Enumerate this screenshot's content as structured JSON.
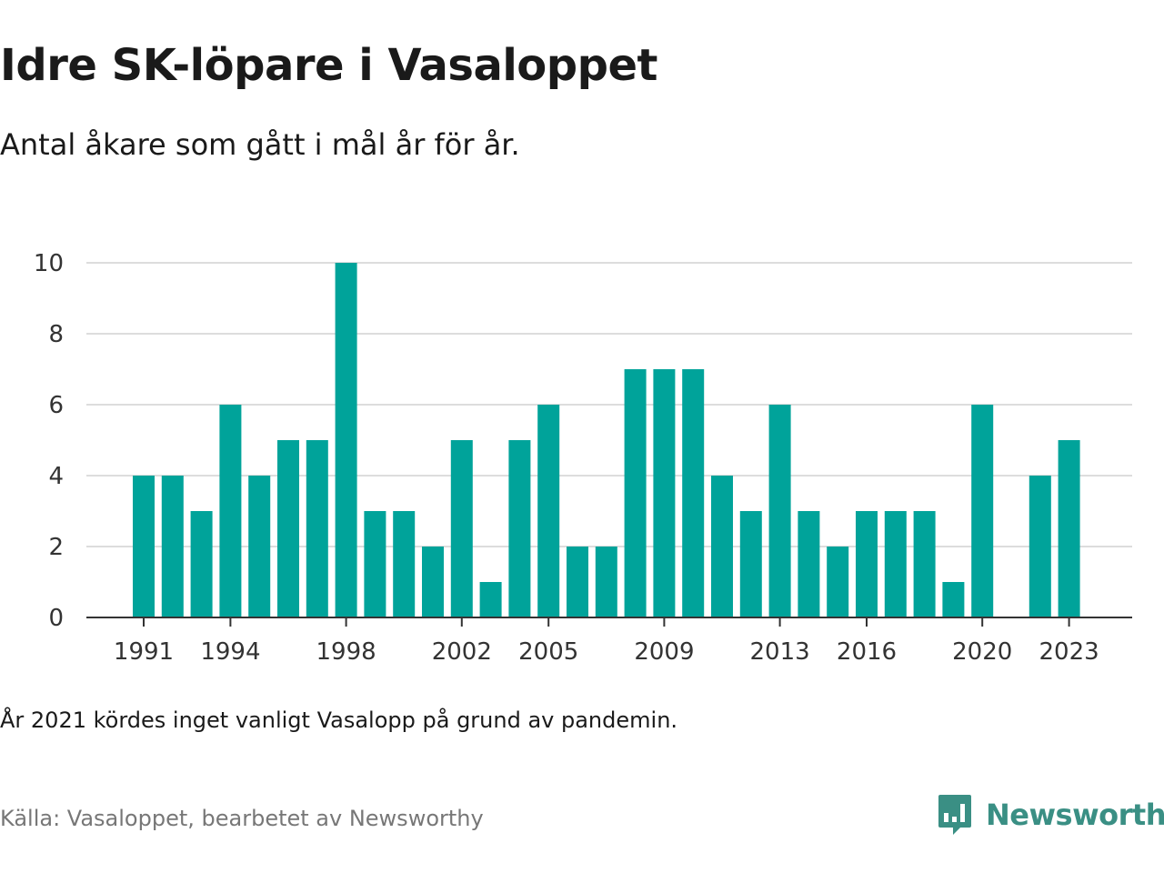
{
  "title": "Idre SK-löpare i Vasaloppet",
  "subtitle": "Antal åkare som gått i mål år för år.",
  "note": "År 2021 kördes inget vanligt Vasalopp på grund av pandemin.",
  "source": "Källa: Vasaloppet, bearbetet av Newsworthy",
  "brand": {
    "name": "Newsworthy",
    "icon": "newsworthy-logo-icon"
  },
  "colors": {
    "bar": "#00a39a",
    "grid": "#dddddd",
    "axis": "#333333",
    "brand": "#3a8f84"
  },
  "chart_data": {
    "type": "bar",
    "categories": [
      1991,
      1992,
      1993,
      1994,
      1995,
      1996,
      1997,
      1998,
      1999,
      2000,
      2001,
      2002,
      2003,
      2004,
      2005,
      2006,
      2007,
      2008,
      2009,
      2010,
      2011,
      2012,
      2013,
      2014,
      2015,
      2016,
      2017,
      2018,
      2019,
      2020,
      2021,
      2022,
      2023
    ],
    "values": [
      4,
      4,
      3,
      6,
      4,
      5,
      5,
      10,
      3,
      3,
      2,
      5,
      1,
      5,
      6,
      2,
      2,
      7,
      7,
      7,
      4,
      3,
      6,
      3,
      2,
      3,
      3,
      3,
      1,
      6,
      null,
      4,
      5
    ],
    "x_tick_labels": [
      "1991",
      "1994",
      "1998",
      "2002",
      "2005",
      "2009",
      "2013",
      "2016",
      "2020",
      "2023"
    ],
    "y_ticks": [
      0,
      2,
      4,
      6,
      8,
      10
    ],
    "ylim": [
      0,
      10
    ],
    "xlabel": "",
    "ylabel": "",
    "grid": true,
    "legend": "none"
  }
}
